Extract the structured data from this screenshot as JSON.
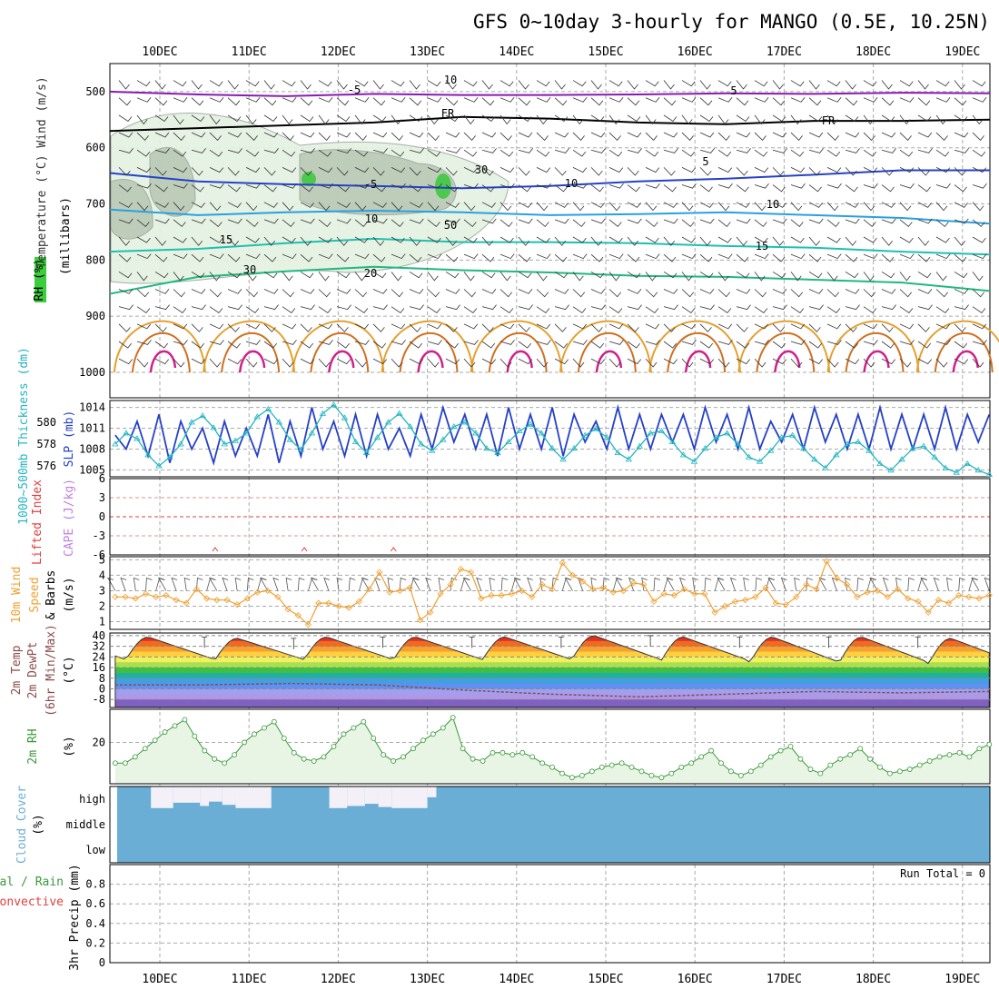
{
  "title": "GFS 0~10day 3-hourly for MANGO (0.5E, 10.25N)",
  "dates": [
    "10DEC",
    "11DEC",
    "12DEC",
    "13DEC",
    "14DEC",
    "15DEC",
    "16DEC",
    "17DEC",
    "18DEC",
    "19DEC"
  ],
  "colors": {
    "dewpoint": "#8b4b4b",
    "slp": "#2541c8",
    "thick": "#22b5c0",
    "wind": "#f0a030",
    "rh": "#3a9a3a",
    "cloud": "#6aaed6",
    "li": "#e04040",
    "cape": "#c080e0"
  },
  "chart_data": [
    {
      "name": "upper",
      "type": "contour",
      "ylabel": "(millibars)",
      "legend": [
        "RH (%)",
        "Temperature (°C)",
        "Wind (m/s)"
      ],
      "y_ticks": [
        500,
        600,
        700,
        800,
        900,
        1000
      ],
      "ylim": [
        450,
        1000
      ],
      "isotherms": [
        {
          "label": "-5",
          "color": "#8a1ab0",
          "p": [
            500,
            505,
            508,
            504,
            506,
            506,
            505,
            503,
            504,
            502,
            503
          ]
        },
        {
          "label": "FR",
          "color": "#000000",
          "p": [
            570,
            565,
            560,
            555,
            545,
            548,
            555,
            558,
            552,
            552,
            550
          ]
        },
        {
          "label": "-5",
          "color": "#2541c8",
          "p": [
            645,
            660,
            665,
            668,
            672,
            668,
            660,
            655,
            648,
            640,
            640
          ]
        },
        {
          "label": "10",
          "color": "#2aa0e0",
          "p": [
            710,
            720,
            715,
            712,
            715,
            720,
            718,
            715,
            720,
            725,
            735
          ]
        },
        {
          "label": "15",
          "color": "#1ec0b0",
          "p": [
            785,
            780,
            770,
            762,
            768,
            768,
            770,
            775,
            778,
            785,
            790
          ]
        },
        {
          "label": "20",
          "color": "#20b880",
          "p": [
            860,
            830,
            820,
            812,
            818,
            822,
            828,
            830,
            835,
            840,
            855
          ]
        }
      ],
      "contour_labels": [
        "-5",
        "FR",
        "-5",
        "10",
        "15",
        "20",
        "10",
        "30",
        "50",
        "30",
        "10",
        "5",
        "FR",
        "5",
        "10",
        "15"
      ]
    },
    {
      "name": "slp_thickness",
      "type": "line",
      "ylabel_left": "1000~500mb Thickness (dm)",
      "ylabel_right": "SLP (mb)",
      "left_ticks": [
        576,
        578,
        580
      ],
      "right_ticks": [
        1005,
        1008,
        1011,
        1014
      ],
      "slp_range": [
        1004,
        1015
      ],
      "thick_range": [
        575,
        582
      ],
      "slp": [
        1010,
        1008,
        1012,
        1007,
        1013,
        1006,
        1012,
        1008,
        1011,
        1006,
        1012,
        1007,
        1011,
        1007,
        1013,
        1006,
        1012,
        1007,
        1014,
        1008,
        1012,
        1007,
        1013,
        1007,
        1013,
        1008,
        1011,
        1007,
        1013,
        1008,
        1014,
        1009,
        1013,
        1008,
        1013,
        1007,
        1014,
        1008,
        1013,
        1008,
        1014,
        1007,
        1013,
        1009,
        1012,
        1008,
        1014,
        1008,
        1013,
        1008,
        1013,
        1009,
        1013,
        1008,
        1014,
        1009,
        1013,
        1008,
        1014,
        1008,
        1012,
        1009,
        1013,
        1008,
        1014,
        1009,
        1013,
        1008,
        1013,
        1008,
        1014,
        1008,
        1013,
        1008,
        1013,
        1008,
        1014,
        1008,
        1013,
        1009,
        1013
      ],
      "thickness": [
        578,
        579,
        578.5,
        577,
        576,
        576.8,
        578,
        580,
        580.6,
        579.5,
        578,
        578.3,
        579,
        580.5,
        581.2,
        580,
        578.4,
        577.5,
        579,
        580.8,
        581.6,
        580.4,
        578.2,
        577.2,
        578.6,
        580,
        580.8,
        579.6,
        578,
        577.4,
        578.4,
        579.6,
        580,
        579,
        577.6,
        577.2,
        578.2,
        579.2,
        579.8,
        579,
        577.6,
        576.6,
        577.6,
        578.8,
        579.4,
        578.6,
        577.2,
        576.6,
        577.8,
        579,
        579.2,
        578.2,
        577,
        576.4,
        577.6,
        578.6,
        579,
        578,
        576.8,
        576.4,
        577.4,
        578.6,
        578.8,
        577.6,
        576.6,
        575.8,
        577,
        578,
        578.2,
        577.4,
        576.2,
        575.6,
        576.6,
        577.6,
        577.8,
        576.8,
        575.8,
        575.4,
        576.2,
        575.6,
        575.2
      ]
    },
    {
      "name": "li_cape",
      "type": "line",
      "ylabel_left": "Lifted Index",
      "ylabel_right": "CAPE (J/kg)",
      "y_ticks": [
        "6",
        "3",
        "0",
        "-3",
        "-6"
      ],
      "cape_markers": [
        10.62,
        11.62,
        12.62
      ]
    },
    {
      "name": "wind10m",
      "type": "line",
      "ylabel": "10m Wind Speed & Barbs (m/s)",
      "y_ticks": [
        1,
        2,
        3,
        4,
        5
      ],
      "ylim": [
        0.5,
        5.2
      ],
      "speed": [
        2.6,
        2.6,
        2.5,
        2.8,
        2.6,
        2.7,
        2.4,
        2.2,
        3.1,
        2.5,
        2.4,
        2.4,
        2.1,
        2.5,
        2.9,
        3.0,
        2.6,
        1.8,
        1.4,
        0.8,
        2.2,
        2.2,
        2.0,
        1.9,
        2.3,
        3.1,
        4.2,
        2.9,
        3.0,
        3.2,
        1.1,
        1.6,
        2.8,
        3.4,
        4.4,
        4.2,
        2.5,
        2.7,
        2.7,
        2.8,
        3.0,
        2.6,
        3.4,
        3.1,
        4.8,
        4.0,
        3.6,
        3.1,
        3.2,
        2.9,
        3.0,
        3.5,
        3.4,
        2.3,
        2.8,
        2.7,
        3.1,
        2.8,
        2.8,
        1.6,
        2.0,
        2.3,
        2.4,
        2.6,
        3.2,
        2.2,
        2.1,
        2.6,
        3.4,
        3.1,
        4.9,
        3.8,
        3.4,
        2.6,
        2.9,
        3.0,
        2.6,
        3.1,
        2.5,
        2.3,
        1.6,
        2.4,
        2.2,
        2.7,
        2.6,
        2.5,
        2.7
      ]
    },
    {
      "name": "temp2m",
      "type": "area",
      "ylabel": "2m Temp 2m DewPt (6hr Min/Max) (°C)",
      "y_ticks": [
        40,
        32,
        24,
        16,
        8,
        0,
        -8
      ],
      "ylim": [
        -14,
        42
      ],
      "temp_max": [
        39,
        38,
        39,
        39,
        39,
        40,
        39,
        39,
        39,
        38
      ],
      "temp_min": [
        22,
        22,
        22,
        22,
        22,
        22,
        21,
        20,
        20,
        19
      ],
      "dewpoint": [
        3,
        3,
        4,
        3,
        -1,
        -4,
        -6,
        -4,
        -2,
        -3,
        -2
      ]
    },
    {
      "name": "rh2m",
      "type": "line",
      "ylabel": "2m RH (%)",
      "y_ticks": [
        20
      ],
      "ylim": [
        0,
        36
      ],
      "values": [
        10,
        10,
        13,
        17,
        21,
        25,
        28,
        31,
        23,
        16,
        12,
        10,
        14,
        20,
        24,
        27,
        30,
        22,
        15,
        12,
        11,
        13,
        18,
        24,
        27,
        30,
        22,
        14,
        11,
        13,
        17,
        21,
        24,
        27,
        32,
        17,
        12,
        11,
        15,
        15,
        14,
        15,
        13,
        10,
        8,
        5,
        3,
        4,
        6,
        8,
        9,
        10,
        8,
        6,
        4,
        3,
        5,
        8,
        10,
        13,
        16,
        10,
        6,
        4,
        6,
        9,
        13,
        16,
        18,
        12,
        7,
        5,
        9,
        12,
        14,
        17,
        12,
        8,
        5,
        6,
        7,
        9,
        11,
        13,
        14,
        15,
        13,
        17,
        19
      ]
    },
    {
      "name": "cloud",
      "type": "heatmap",
      "ylabel": "Cloud Cover (%)",
      "levels": [
        "high",
        "middle",
        "low"
      ],
      "high_gaps": [
        [
          9.9,
          10.15,
          1
        ],
        [
          10.15,
          10.45,
          0.75
        ],
        [
          10.45,
          10.55,
          0.9
        ],
        [
          10.55,
          10.7,
          0.7
        ],
        [
          10.7,
          10.85,
          0.85
        ],
        [
          10.85,
          11.25,
          1
        ],
        [
          11.9,
          12.1,
          1
        ],
        [
          12.1,
          12.3,
          0.9
        ],
        [
          12.3,
          12.45,
          0.8
        ],
        [
          12.45,
          12.6,
          0.95
        ],
        [
          12.6,
          13.0,
          1
        ],
        [
          13.0,
          13.1,
          0.5
        ]
      ]
    },
    {
      "name": "precip",
      "type": "bar",
      "ylabel": "3hr Precip (mm)",
      "left_labels": [
        "Total / Rain",
        "Convective"
      ],
      "y_ticks": [
        0,
        0.2,
        0.4,
        0.6,
        0.8
      ],
      "ylim": [
        0,
        1.0
      ],
      "run_total": "Run Total = 0",
      "values": []
    }
  ]
}
